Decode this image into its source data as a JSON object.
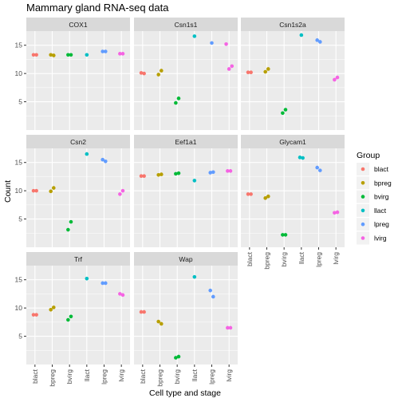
{
  "chart_data": {
    "type": "scatter",
    "title": "Mammary gland RNA-seq data",
    "xlabel": "Cell type and stage",
    "ylabel": "Count",
    "categories": [
      "blact",
      "bpreg",
      "bvirg",
      "llact",
      "lpreg",
      "lvirg"
    ],
    "ylim": [
      0,
      17.5
    ],
    "yticks": [
      5,
      10,
      15
    ],
    "grid": true,
    "legend": {
      "title": "Group",
      "placement": "right",
      "entries": [
        {
          "label": "blact",
          "color": "#F8766D"
        },
        {
          "label": "bpreg",
          "color": "#B79F00"
        },
        {
          "label": "bvirg",
          "color": "#00BA38"
        },
        {
          "label": "llact",
          "color": "#00BFC4"
        },
        {
          "label": "lpreg",
          "color": "#619CFF"
        },
        {
          "label": "lvirg",
          "color": "#F564E3"
        }
      ]
    },
    "panels": [
      {
        "gene": "COX1",
        "points": [
          {
            "group": "blact",
            "values": [
              13.3,
              13.3
            ]
          },
          {
            "group": "bpreg",
            "values": [
              13.3,
              13.2
            ]
          },
          {
            "group": "bvirg",
            "values": [
              13.3,
              13.3
            ]
          },
          {
            "group": "llact",
            "values": [
              13.3
            ]
          },
          {
            "group": "lpreg",
            "values": [
              13.9,
              13.9
            ]
          },
          {
            "group": "lvirg",
            "values": [
              13.5,
              13.5
            ]
          }
        ]
      },
      {
        "gene": "Csn1s1",
        "points": [
          {
            "group": "blact",
            "values": [
              10.1,
              10.0
            ]
          },
          {
            "group": "bpreg",
            "values": [
              9.8,
              10.5
            ]
          },
          {
            "group": "bvirg",
            "values": [
              4.8,
              5.6
            ]
          },
          {
            "group": "llact",
            "values": [
              16.6
            ]
          },
          {
            "group": "lpreg",
            "values": [
              15.4
            ]
          },
          {
            "group": "lvirg",
            "values": [
              15.2,
              10.8,
              11.3
            ]
          }
        ]
      },
      {
        "gene": "Csn1s2a",
        "points": [
          {
            "group": "blact",
            "values": [
              10.2,
              10.2
            ]
          },
          {
            "group": "bpreg",
            "values": [
              10.3,
              10.8
            ]
          },
          {
            "group": "bvirg",
            "values": [
              3.0,
              3.6
            ]
          },
          {
            "group": "llact",
            "values": [
              16.8
            ]
          },
          {
            "group": "lpreg",
            "values": [
              15.9,
              15.6
            ]
          },
          {
            "group": "lvirg",
            "values": [
              8.9,
              9.3
            ]
          }
        ]
      },
      {
        "gene": "Csn2",
        "points": [
          {
            "group": "blact",
            "values": [
              10.0,
              10.0
            ]
          },
          {
            "group": "bpreg",
            "values": [
              9.9,
              10.5
            ]
          },
          {
            "group": "bvirg",
            "values": [
              3.1,
              4.5
            ]
          },
          {
            "group": "llact",
            "values": [
              16.5
            ]
          },
          {
            "group": "lpreg",
            "values": [
              15.5,
              15.2
            ]
          },
          {
            "group": "lvirg",
            "values": [
              9.4,
              10.0
            ]
          }
        ]
      },
      {
        "gene": "Eef1a1",
        "points": [
          {
            "group": "blact",
            "values": [
              12.6,
              12.6
            ]
          },
          {
            "group": "bpreg",
            "values": [
              12.8,
              12.9
            ]
          },
          {
            "group": "bvirg",
            "values": [
              13.0,
              13.1
            ]
          },
          {
            "group": "llact",
            "values": [
              11.8
            ]
          },
          {
            "group": "lpreg",
            "values": [
              13.2,
              13.3
            ]
          },
          {
            "group": "lvirg",
            "values": [
              13.5,
              13.5
            ]
          }
        ]
      },
      {
        "gene": "Glycam1",
        "points": [
          {
            "group": "blact",
            "values": [
              9.4,
              9.4
            ]
          },
          {
            "group": "bpreg",
            "values": [
              8.7,
              9.0
            ]
          },
          {
            "group": "bvirg",
            "values": [
              2.2,
              2.2
            ]
          },
          {
            "group": "llact",
            "values": [
              15.9,
              15.8
            ]
          },
          {
            "group": "lpreg",
            "values": [
              14.1,
              13.6
            ]
          },
          {
            "group": "lvirg",
            "values": [
              6.1,
              6.2
            ]
          }
        ]
      },
      {
        "gene": "Trf",
        "points": [
          {
            "group": "blact",
            "values": [
              8.8,
              8.8
            ]
          },
          {
            "group": "bpreg",
            "values": [
              9.7,
              10.1
            ]
          },
          {
            "group": "bvirg",
            "values": [
              7.9,
              8.5
            ]
          },
          {
            "group": "llact",
            "values": [
              15.2
            ]
          },
          {
            "group": "lpreg",
            "values": [
              14.4,
              14.4
            ]
          },
          {
            "group": "lvirg",
            "values": [
              12.5,
              12.3
            ]
          }
        ]
      },
      {
        "gene": "Wap",
        "points": [
          {
            "group": "blact",
            "values": [
              9.3,
              9.3
            ]
          },
          {
            "group": "bpreg",
            "values": [
              7.6,
              7.2
            ]
          },
          {
            "group": "bvirg",
            "values": [
              1.2,
              1.4
            ]
          },
          {
            "group": "llact",
            "values": [
              15.5
            ]
          },
          {
            "group": "lpreg",
            "values": [
              13.1,
              12.0
            ]
          },
          {
            "group": "lvirg",
            "values": [
              6.5,
              6.5
            ]
          }
        ]
      }
    ]
  }
}
